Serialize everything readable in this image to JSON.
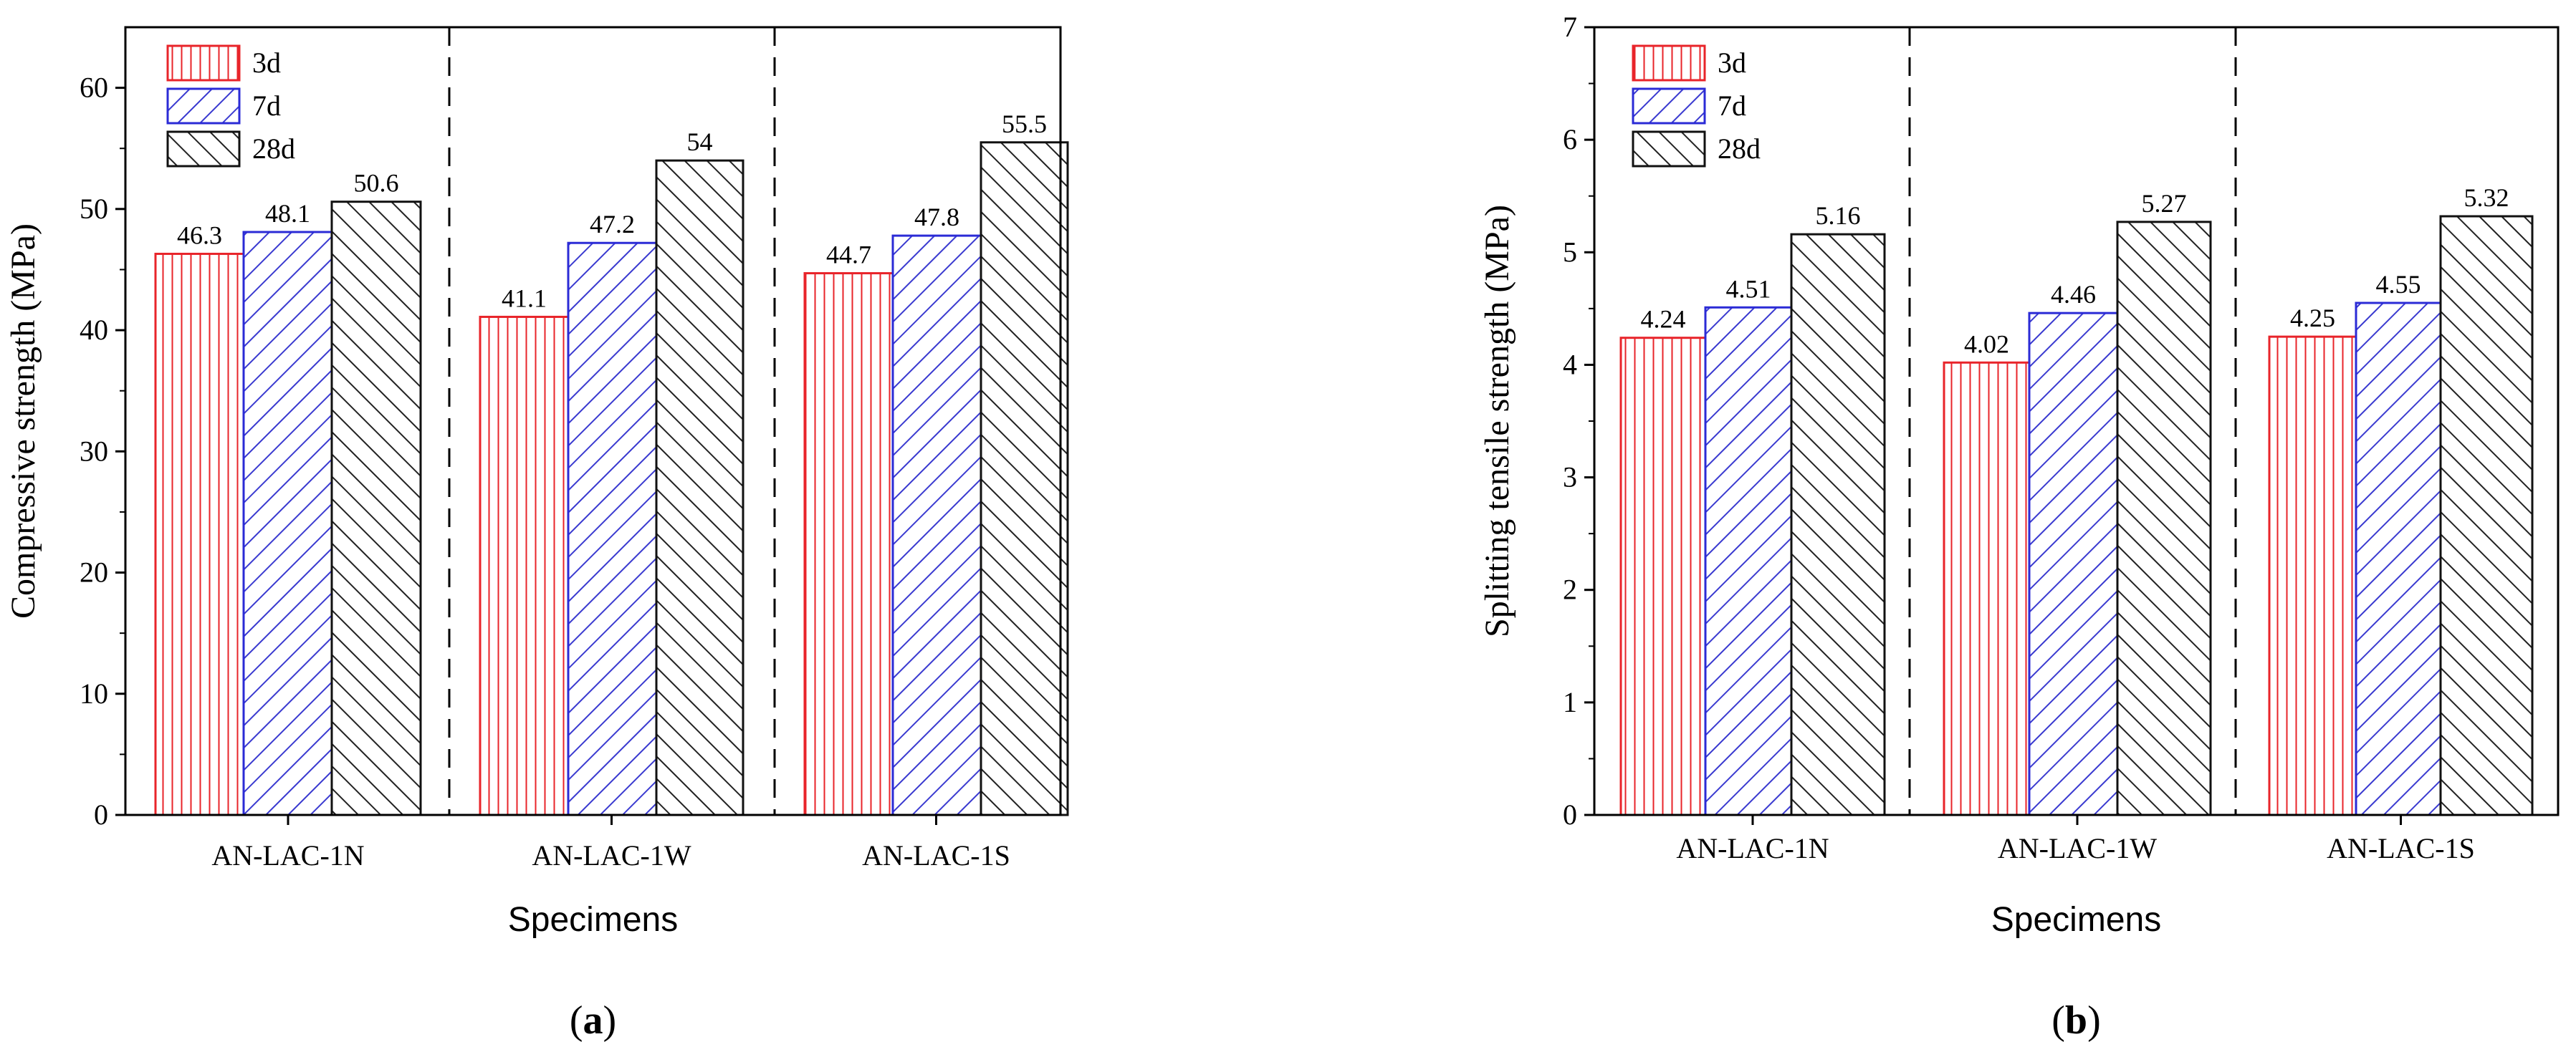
{
  "colors": {
    "d3": "#e8242a",
    "d7": "#2b2bd6",
    "d28": "#111111",
    "axis": "#000000",
    "divider": "#000000"
  },
  "chart_data": [
    {
      "panel_label": "a",
      "type": "bar",
      "xlabel": "Specimens",
      "ylabel": "Compressive strength (MPa)",
      "ylim": [
        0,
        65
      ],
      "yticks": [
        0,
        10,
        20,
        30,
        40,
        50,
        60
      ],
      "categories": [
        "AN-LAC-1N",
        "AN-LAC-1W",
        "AN-LAC-1S"
      ],
      "series": [
        {
          "name": "3d",
          "values": [
            46.3,
            41.1,
            44.7
          ],
          "labels": [
            "46.3",
            "41.1",
            "44.7"
          ]
        },
        {
          "name": "7d",
          "values": [
            48.1,
            47.2,
            47.8
          ],
          "labels": [
            "48.1",
            "47.2",
            "47.8"
          ]
        },
        {
          "name": "28d",
          "values": [
            50.6,
            54,
            55.5
          ],
          "labels": [
            "50.6",
            "54",
            "55.5"
          ]
        }
      ],
      "legend": "top-left",
      "grid": false
    },
    {
      "panel_label": "b",
      "type": "bar",
      "xlabel": "Specimens",
      "ylabel": "Splitting tensile strength (MPa)",
      "ylim": [
        0,
        7
      ],
      "yticks": [
        0,
        1,
        2,
        3,
        4,
        5,
        6,
        7
      ],
      "categories": [
        "AN-LAC-1N",
        "AN-LAC-1W",
        "AN-LAC-1S"
      ],
      "series": [
        {
          "name": "3d",
          "values": [
            4.24,
            4.02,
            4.25
          ],
          "labels": [
            "4.24",
            "4.02",
            "4.25"
          ]
        },
        {
          "name": "7d",
          "values": [
            4.51,
            4.46,
            4.55
          ],
          "labels": [
            "4.51",
            "4.46",
            "4.55"
          ]
        },
        {
          "name": "28d",
          "values": [
            5.16,
            5.27,
            5.32
          ],
          "labels": [
            "5.16",
            "5.27",
            "5.32"
          ]
        }
      ],
      "legend": "top-left",
      "grid": false
    }
  ]
}
